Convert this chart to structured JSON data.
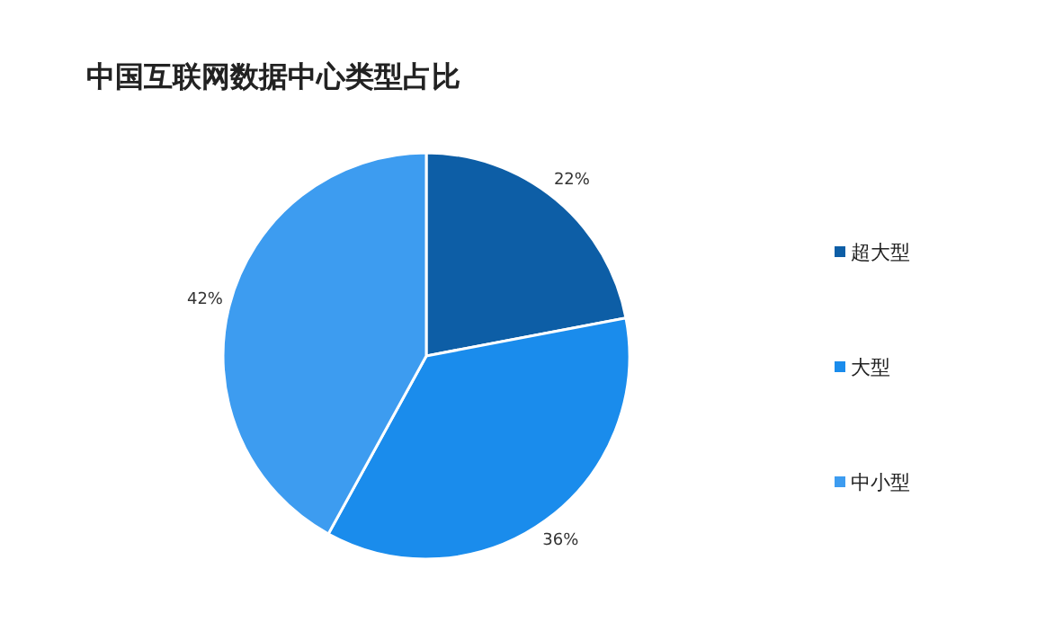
{
  "chart_data": {
    "type": "pie",
    "title": "中国互联网数据中心类型占比",
    "categories": [
      "超大型",
      "大型",
      "中小型"
    ],
    "values": [
      22,
      36,
      42
    ],
    "colors": [
      "#0d5ea6",
      "#1a8cec",
      "#3d9cf0"
    ],
    "value_labels": [
      "22%",
      "36%",
      "42%"
    ],
    "legend": "right"
  }
}
